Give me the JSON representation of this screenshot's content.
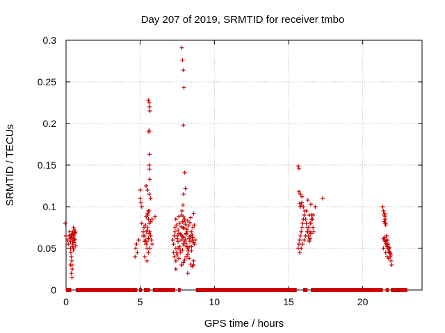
{
  "chart_data": {
    "type": "scatter",
    "title": "Day 207 of 2019, SRMTID for receiver tmbo",
    "xlabel": "GPS time / hours",
    "ylabel": "SRMTID / TECUs",
    "xlim": [
      0,
      24
    ],
    "ylim": [
      0,
      0.3
    ],
    "x_ticks": [
      0,
      5,
      10,
      15,
      20
    ],
    "x_tick_labels": [
      "0",
      "5",
      "10",
      "15",
      "20"
    ],
    "y_ticks": [
      0,
      0.05,
      0.1,
      0.15,
      0.2,
      0.25,
      0.3
    ],
    "y_tick_labels": [
      "0",
      "0.05",
      "0.1",
      "0.15",
      "0.2",
      "0.25",
      "0.3"
    ],
    "grid": true,
    "marker": "+",
    "color": "#cc0000",
    "series": [
      {
        "name": "SRMTID",
        "x": [
          -0.05,
          0.0,
          0.1,
          0.15,
          0.2,
          0.25,
          0.3,
          0.32,
          0.35,
          0.38,
          0.4,
          0.42,
          0.45,
          0.48,
          0.5,
          0.52,
          0.55,
          0.58,
          0.6,
          0.3,
          0.35,
          0.4,
          0.45,
          0.5,
          0.55,
          0.4,
          0.45,
          0.5,
          0.3,
          0.35,
          0.4,
          0.45,
          0.5,
          0.55,
          0.6,
          0.62,
          0.65,
          0.3,
          0.35,
          4.65,
          4.7,
          4.75,
          4.8,
          4.9,
          5.0,
          5.05,
          5.1,
          5.0,
          5.1,
          5.2,
          5.25,
          5.3,
          5.35,
          5.4,
          5.45,
          5.5,
          5.55,
          5.6,
          5.65,
          5.7,
          5.75,
          5.8,
          5.4,
          5.5,
          5.6,
          5.7,
          5.3,
          5.45,
          5.55,
          5.65,
          5.35,
          5.5,
          5.6,
          5.45,
          5.55,
          5.4,
          5.5,
          5.6,
          5.3,
          5.7,
          5.2,
          5.4,
          5.5,
          5.55,
          5.6,
          5.62,
          5.65,
          5.58,
          5.6,
          5.63,
          5.6,
          5.62,
          5.65,
          5.55,
          6.0,
          5.8,
          7.2,
          7.25,
          7.3,
          7.35,
          7.4,
          7.45,
          7.5,
          7.55,
          7.6,
          7.65,
          7.7,
          7.75,
          7.8,
          7.85,
          7.9,
          7.95,
          8.0,
          8.05,
          8.1,
          8.15,
          8.2,
          8.25,
          8.3,
          8.35,
          8.4,
          8.45,
          8.5,
          8.55,
          8.6,
          8.65,
          8.7,
          7.3,
          7.4,
          7.5,
          7.6,
          7.7,
          7.8,
          7.9,
          8.0,
          8.1,
          8.2,
          8.3,
          8.4,
          8.5,
          8.6,
          7.35,
          7.45,
          7.55,
          7.65,
          7.75,
          7.85,
          7.95,
          8.05,
          8.15,
          8.25,
          8.35,
          8.45,
          8.55,
          8.65,
          7.4,
          7.6,
          7.8,
          8.0,
          8.2,
          8.4,
          8.6,
          7.5,
          7.7,
          7.9,
          8.1,
          8.3,
          8.5,
          7.25,
          7.55,
          7.85,
          8.15,
          8.45,
          7.4,
          7.8,
          8.2,
          8.6,
          7.8,
          7.85,
          7.9,
          7.95,
          7.9,
          8.0,
          8.05,
          7.92,
          7.88,
          7.82,
          7.9,
          7.95,
          7.9,
          8.1,
          8.3,
          15.65,
          15.7,
          15.75,
          15.8,
          15.85,
          15.9,
          15.95,
          16.0,
          16.05,
          16.1,
          16.15,
          16.2,
          16.25,
          16.3,
          16.35,
          16.4,
          16.45,
          16.5,
          16.55,
          16.6,
          16.65,
          16.7,
          15.75,
          15.85,
          15.95,
          16.05,
          16.15,
          16.25,
          16.35,
          16.45,
          16.55,
          16.65,
          15.8,
          15.9,
          16.0,
          16.2,
          16.4,
          16.6,
          15.7,
          15.8,
          15.9,
          16.3,
          16.5,
          15.75,
          15.85,
          15.65,
          15.7,
          16.8,
          17.3,
          16.4,
          16.45,
          16.5,
          21.35,
          21.4,
          21.45,
          21.5,
          21.55,
          21.6,
          21.65,
          21.7,
          21.75,
          21.8,
          21.85,
          21.9,
          21.95,
          21.4,
          21.5,
          21.6,
          21.7,
          21.8,
          21.9,
          21.45,
          21.55,
          21.65,
          21.75,
          21.85,
          21.5,
          21.6,
          21.7,
          21.8,
          21.4,
          21.55,
          21.65,
          21.75,
          21.48,
          21.5,
          21.52,
          21.45,
          21.5,
          21.55
        ],
        "y": [
          0.08,
          0.065,
          0.06,
          0.055,
          0.065,
          0.07,
          0.05,
          0.045,
          0.04,
          0.035,
          0.03,
          0.025,
          0.058,
          0.06,
          0.062,
          0.065,
          0.07,
          0.068,
          0.072,
          0.03,
          0.02,
          0.015,
          0.055,
          0.05,
          0.06,
          0.065,
          0.07,
          0.075,
          0.058,
          0.063,
          0.067,
          0.052,
          0.048,
          0.057,
          0.061,
          0.069,
          0.053,
          0.062,
          0.066,
          0.04,
          0.05,
          0.055,
          0.045,
          0.06,
          0.11,
          0.105,
          0.1,
          0.12,
          0.08,
          0.07,
          0.075,
          0.065,
          0.06,
          0.055,
          0.05,
          0.09,
          0.085,
          0.08,
          0.07,
          0.065,
          0.06,
          0.055,
          0.125,
          0.12,
          0.115,
          0.11,
          0.04,
          0.035,
          0.045,
          0.05,
          0.078,
          0.072,
          0.068,
          0.058,
          0.062,
          0.088,
          0.092,
          0.095,
          0.058,
          0.082,
          0.065,
          0.07,
          0.075,
          0.228,
          0.225,
          0.22,
          0.215,
          0.19,
          0.192,
          0.163,
          0.15,
          0.145,
          0.133,
          0.095,
          0.088,
          0.085,
          0.06,
          0.055,
          0.065,
          0.07,
          0.05,
          0.045,
          0.062,
          0.058,
          0.068,
          0.052,
          0.048,
          0.06,
          0.066,
          0.064,
          0.056,
          0.054,
          0.059,
          0.061,
          0.067,
          0.07,
          0.05,
          0.047,
          0.062,
          0.058,
          0.065,
          0.052,
          0.06,
          0.063,
          0.057,
          0.055,
          0.06,
          0.04,
          0.035,
          0.042,
          0.038,
          0.045,
          0.03,
          0.033,
          0.036,
          0.04,
          0.043,
          0.038,
          0.031,
          0.028,
          0.035,
          0.075,
          0.078,
          0.072,
          0.08,
          0.076,
          0.082,
          0.074,
          0.079,
          0.073,
          0.077,
          0.081,
          0.07,
          0.075,
          0.078,
          0.085,
          0.088,
          0.09,
          0.085,
          0.083,
          0.087,
          0.092,
          0.065,
          0.067,
          0.063,
          0.068,
          0.064,
          0.066,
          0.045,
          0.05,
          0.048,
          0.052,
          0.047,
          0.025,
          0.03,
          0.02,
          0.03,
          0.291,
          0.276,
          0.264,
          0.243,
          0.198,
          0.141,
          0.122,
          0.115,
          0.102,
          0.095,
          0.088,
          0.082,
          0.075,
          0.056,
          0.052,
          0.05,
          0.055,
          0.06,
          0.065,
          0.07,
          0.075,
          0.08,
          0.085,
          0.09,
          0.095,
          0.085,
          0.08,
          0.075,
          0.07,
          0.065,
          0.06,
          0.07,
          0.08,
          0.09,
          0.085,
          0.075,
          0.07,
          0.045,
          0.05,
          0.055,
          0.06,
          0.065,
          0.07,
          0.075,
          0.08,
          0.085,
          0.09,
          0.1,
          0.105,
          0.1,
          0.095,
          0.09,
          0.085,
          0.118,
          0.115,
          0.112,
          0.108,
          0.103,
          0.104,
          0.102,
          0.149,
          0.146,
          0.1,
          0.11,
          0.058,
          0.062,
          0.068,
          0.1,
          0.095,
          0.09,
          0.085,
          0.08,
          0.065,
          0.06,
          0.055,
          0.05,
          0.045,
          0.04,
          0.035,
          0.03,
          0.062,
          0.058,
          0.054,
          0.05,
          0.046,
          0.042,
          0.06,
          0.056,
          0.052,
          0.048,
          0.044,
          0.063,
          0.059,
          0.055,
          0.051,
          0.05,
          0.045,
          0.04,
          0.038,
          0.092,
          0.088,
          0.085,
          0.082,
          0.08,
          0.078
        ]
      },
      {
        "name": "zero-level",
        "x_ranges": [
          [
            0.0,
            0.35
          ],
          [
            0.65,
            4.8
          ],
          [
            4.92,
            5.12
          ],
          [
            5.25,
            5.65
          ],
          [
            5.85,
            7.35
          ],
          [
            7.55,
            7.72
          ],
          [
            8.75,
            15.55
          ],
          [
            15.98,
            16.28
          ],
          [
            16.5,
            21.35
          ],
          [
            21.55,
            21.75
          ],
          [
            21.9,
            23.0
          ]
        ]
      }
    ]
  }
}
